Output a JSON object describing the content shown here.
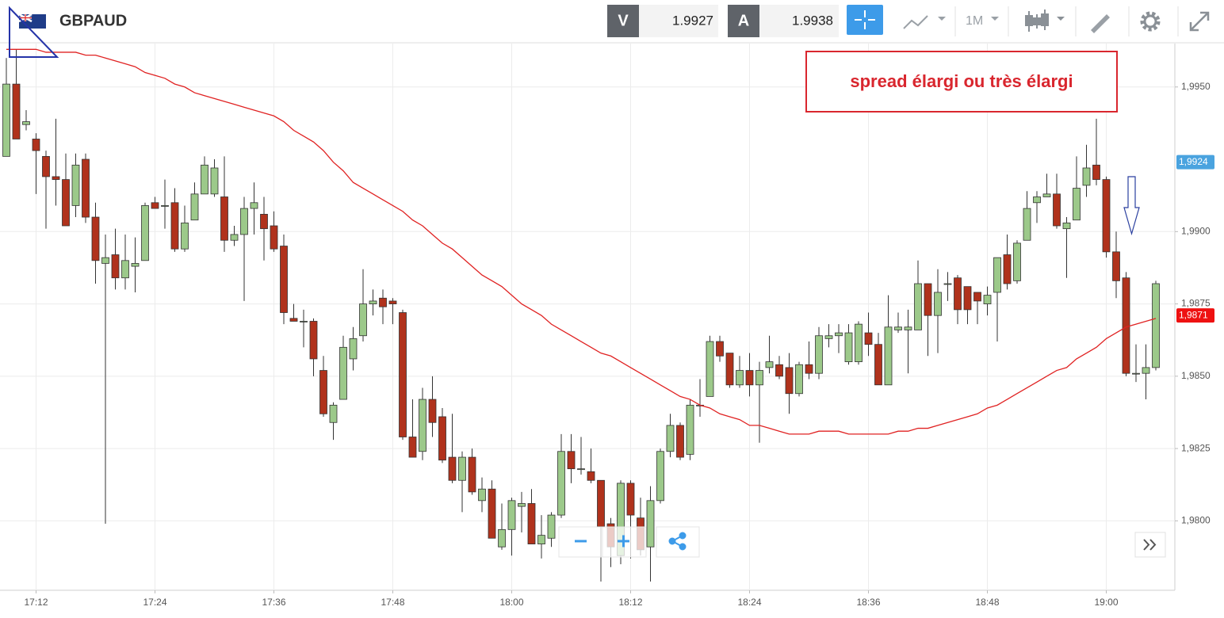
{
  "toolbar": {
    "symbol": "GBPAUD",
    "bid_label": "V",
    "bid": "1.9927",
    "ask_label": "A",
    "ask": "1.9938",
    "timeframe": "1M"
  },
  "chart_data": {
    "type": "candlestick",
    "annotation": "spread élargi ou très élargi",
    "categories": [
      null,
      null,
      null,
      "17:12",
      null,
      null,
      null,
      null,
      null,
      null,
      null,
      null,
      null,
      null,
      null,
      "17:24",
      null,
      null,
      null,
      null,
      null,
      null,
      null,
      null,
      null,
      null,
      null,
      "17:36",
      null,
      null,
      null,
      null,
      null,
      null,
      null,
      null,
      null,
      null,
      null,
      "17:48",
      null,
      null,
      null,
      null,
      null,
      null,
      null,
      null,
      null,
      null,
      null,
      "18:00",
      null,
      null,
      null,
      null,
      null,
      null,
      null,
      null,
      null,
      null,
      null,
      "18:12",
      null,
      null,
      null,
      null,
      null,
      null,
      null,
      null,
      null,
      null,
      null,
      "18:24",
      null,
      null,
      null,
      null,
      null,
      null,
      null,
      null,
      null,
      null,
      null,
      "18:36",
      null,
      null,
      null,
      null,
      null,
      null,
      null,
      null,
      null,
      null,
      null,
      "18:48",
      null,
      null,
      null,
      null,
      null,
      null,
      null,
      null,
      null,
      null,
      null,
      "19:00",
      null,
      null,
      null,
      null,
      null
    ],
    "open": [
      1.9926,
      1.9951,
      1.9937,
      1.9932,
      1.9926,
      1.9919,
      1.9918,
      1.9909,
      1.9925,
      1.9905,
      1.9889,
      1.9892,
      1.9884,
      1.9888,
      1.989,
      1.991,
      1.9909,
      1.991,
      1.9894,
      1.9904,
      1.9913,
      1.9913,
      1.9912,
      1.9897,
      1.9899,
      1.9908,
      1.9906,
      1.9902,
      1.9895,
      1.987,
      1.9869,
      1.9869,
      1.9852,
      1.9834,
      1.9842,
      1.9856,
      1.9864,
      1.9875,
      1.9877,
      1.9876,
      1.9872,
      1.9829,
      1.9824,
      1.9842,
      1.9836,
      1.9822,
      1.9814,
      1.9822,
      1.9807,
      1.9811,
      1.9791,
      1.9797,
      1.9805,
      1.9806,
      1.9792,
      1.9794,
      1.9802,
      1.9824,
      1.9818,
      1.9817,
      1.9814,
      1.9799,
      1.9788,
      1.9813,
      1.9801,
      1.9791,
      1.9807,
      1.9824,
      1.9833,
      1.9823,
      1.984,
      1.9843,
      1.9862,
      1.9858,
      1.9847,
      1.9852,
      1.9847,
      1.9853,
      1.9854,
      1.9853,
      1.9844,
      1.9854,
      1.9851,
      1.9863,
      1.9864,
      1.9855,
      1.9855,
      1.9865,
      1.9861,
      1.9847,
      1.9866,
      1.9866,
      1.9866,
      1.9882,
      1.9871,
      1.9882,
      1.9884,
      1.9881,
      1.9879,
      1.9875,
      1.9879,
      1.9892,
      1.9883,
      1.9897,
      1.991,
      1.9912,
      1.9913,
      1.9901,
      1.9904,
      1.9916,
      1.9923,
      1.9918,
      1.9893,
      1.9884,
      1.9851,
      1.9851,
      1.9853
    ],
    "high": [
      1.996,
      1.9963,
      1.9942,
      1.9934,
      1.9928,
      1.9939,
      1.9927,
      1.9927,
      1.9927,
      1.991,
      1.9899,
      1.9901,
      1.9899,
      1.9898,
      1.991,
      1.9912,
      1.9918,
      1.9915,
      1.9909,
      1.9917,
      1.9926,
      1.9925,
      1.9926,
      1.9902,
      1.9912,
      1.9917,
      1.9912,
      1.9907,
      1.9899,
      1.9875,
      1.9873,
      1.987,
      1.9857,
      1.9841,
      1.9864,
      1.9867,
      1.9887,
      1.988,
      1.988,
      1.9877,
      1.9873,
      1.9842,
      1.9846,
      1.985,
      1.9839,
      1.9837,
      1.9824,
      1.9825,
      1.9815,
      1.9814,
      1.9806,
      1.9808,
      1.981,
      1.9811,
      1.9802,
      1.9803,
      1.983,
      1.983,
      1.9829,
      1.9825,
      1.9814,
      1.9801,
      1.9814,
      1.9814,
      1.9808,
      1.9812,
      1.9825,
      1.9837,
      1.9834,
      1.9842,
      1.9849,
      1.9864,
      1.9864,
      1.9858,
      1.9857,
      1.9858,
      1.9855,
      1.9864,
      1.9857,
      1.9858,
      1.9855,
      1.9862,
      1.9867,
      1.9868,
      1.9868,
      1.9868,
      1.9869,
      1.9872,
      1.9865,
      1.9878,
      1.9872,
      1.9873,
      1.989,
      1.9882,
      1.9887,
      1.9886,
      1.9885,
      1.9881,
      1.9879,
      1.9881,
      1.9891,
      1.9899,
      1.9897,
      1.9914,
      1.9914,
      1.992,
      1.992,
      1.9905,
      1.9926,
      1.993,
      1.9939,
      1.9919,
      1.99,
      1.9886,
      1.9861,
      1.9861,
      1.9883
    ],
    "low": [
      1.9926,
      1.9932,
      1.9935,
      1.9913,
      1.9901,
      1.9909,
      1.9902,
      1.9905,
      1.9903,
      1.9882,
      1.9799,
      1.988,
      1.988,
      1.9879,
      1.989,
      1.9908,
      1.9901,
      1.9893,
      1.9893,
      1.9904,
      1.9913,
      1.9912,
      1.9893,
      1.9895,
      1.9876,
      1.9899,
      1.989,
      1.9893,
      1.9868,
      1.9869,
      1.986,
      1.985,
      1.9836,
      1.9828,
      1.9842,
      1.9852,
      1.9862,
      1.9871,
      1.9868,
      1.9868,
      1.9828,
      1.9822,
      1.9821,
      1.9829,
      1.982,
      1.9813,
      1.9803,
      1.9809,
      1.9803,
      1.9794,
      1.979,
      1.9788,
      1.9796,
      1.9792,
      1.9787,
      1.9791,
      1.9801,
      1.9813,
      1.9816,
      1.9813,
      1.9779,
      1.9784,
      1.9785,
      1.9787,
      1.9788,
      1.9779,
      1.9806,
      1.9822,
      1.9821,
      1.9821,
      1.9836,
      1.9843,
      1.9855,
      1.9846,
      1.9846,
      1.9843,
      1.9827,
      1.9851,
      1.9849,
      1.9837,
      1.9843,
      1.9849,
      1.9849,
      1.986,
      1.9858,
      1.9854,
      1.9854,
      1.9857,
      1.9847,
      1.9847,
      1.9865,
      1.9851,
      1.9866,
      1.9857,
      1.9858,
      1.9876,
      1.9868,
      1.9868,
      1.9868,
      1.9871,
      1.9862,
      1.988,
      1.9882,
      1.9897,
      1.9903,
      1.9912,
      1.9901,
      1.9884,
      1.9904,
      1.9912,
      1.9916,
      1.9891,
      1.9877,
      1.985,
      1.9848,
      1.9842,
      1.9852
    ],
    "close": [
      1.9951,
      1.9932,
      1.9938,
      1.9928,
      1.9919,
      1.9918,
      1.9902,
      1.9923,
      1.9905,
      1.989,
      1.9891,
      1.9884,
      1.989,
      1.9889,
      1.9909,
      1.9908,
      1.9909,
      1.9894,
      1.9903,
      1.9913,
      1.9923,
      1.9922,
      1.9897,
      1.9899,
      1.9908,
      1.991,
      1.9901,
      1.9894,
      1.9872,
      1.9869,
      1.9869,
      1.9856,
      1.9837,
      1.984,
      1.986,
      1.9863,
      1.9875,
      1.9876,
      1.9874,
      1.9875,
      1.9829,
      1.9822,
      1.9842,
      1.9834,
      1.9821,
      1.9814,
      1.9822,
      1.981,
      1.9811,
      1.9794,
      1.9797,
      1.9807,
      1.9806,
      1.9792,
      1.9795,
      1.9802,
      1.9824,
      1.9818,
      1.9818,
      1.9814,
      1.9798,
      1.9791,
      1.9813,
      1.9802,
      1.979,
      1.9807,
      1.9824,
      1.9833,
      1.9822,
      1.984,
      1.984,
      1.9862,
      1.9857,
      1.9847,
      1.9852,
      1.9847,
      1.9852,
      1.9855,
      1.985,
      1.9844,
      1.9854,
      1.9851,
      1.9864,
      1.9864,
      1.9865,
      1.9865,
      1.9868,
      1.9861,
      1.9847,
      1.9867,
      1.9867,
      1.9867,
      1.9882,
      1.9871,
      1.9879,
      1.9882,
      1.9873,
      1.9873,
      1.9876,
      1.9878,
      1.9891,
      1.9882,
      1.9896,
      1.9908,
      1.9912,
      1.9913,
      1.9902,
      1.9903,
      1.9915,
      1.9922,
      1.9918,
      1.9893,
      1.9883,
      1.9851,
      1.9851,
      1.9853,
      1.9882
    ],
    "up_color": "#9cc98a",
    "down_color": "#b0321c",
    "moving_average": {
      "color": "#e02222",
      "values": [
        1.9963,
        1.9963,
        1.9963,
        1.9963,
        1.9962,
        1.9962,
        1.9962,
        1.9962,
        1.9961,
        1.9961,
        1.996,
        1.9959,
        1.9958,
        1.9957,
        1.9955,
        1.9954,
        1.9953,
        1.9951,
        1.995,
        1.9948,
        1.9947,
        1.9946,
        1.9945,
        1.9944,
        1.9943,
        1.9942,
        1.9941,
        1.994,
        1.9938,
        1.9935,
        1.9933,
        1.9931,
        1.9928,
        1.9924,
        1.9921,
        1.9917,
        1.9915,
        1.9913,
        1.9911,
        1.9909,
        1.9907,
        1.9904,
        1.9902,
        1.9899,
        1.9896,
        1.9894,
        1.9891,
        1.9888,
        1.9885,
        1.9883,
        1.9881,
        1.9878,
        1.9875,
        1.9873,
        1.9871,
        1.9868,
        1.9866,
        1.9864,
        1.9862,
        1.986,
        1.9858,
        1.9857,
        1.9855,
        1.9853,
        1.9851,
        1.9849,
        1.9847,
        1.9845,
        1.9843,
        1.9842,
        1.984,
        1.9839,
        1.9837,
        1.9836,
        1.9835,
        1.9833,
        1.9833,
        1.9832,
        1.9831,
        1.983,
        1.983,
        1.983,
        1.9831,
        1.9831,
        1.9831,
        1.983,
        1.983,
        1.983,
        1.983,
        1.983,
        1.9831,
        1.9831,
        1.9832,
        1.9832,
        1.9833,
        1.9834,
        1.9835,
        1.9836,
        1.9837,
        1.9839,
        1.984,
        1.9842,
        1.9844,
        1.9846,
        1.9848,
        1.985,
        1.9852,
        1.9853,
        1.9856,
        1.9858,
        1.986,
        1.9863,
        1.9865,
        1.9867,
        1.9868,
        1.9869,
        1.987
      ]
    },
    "ylim": [
      1.9776,
      1.9965
    ],
    "yticks": [
      {
        "value": 1.98,
        "label": "1,9800"
      },
      {
        "value": 1.9825,
        "label": "1,9825"
      },
      {
        "value": 1.985,
        "label": "1,9850"
      },
      {
        "value": 1.9875,
        "label": "1,9875"
      },
      {
        "value": 1.99,
        "label": "1,9900"
      },
      {
        "value": 1.995,
        "label": "1,9950"
      }
    ],
    "price_labels": [
      {
        "value": 1.9924,
        "label": "1,9924",
        "color": "#4aa3df"
      },
      {
        "value": 1.9871,
        "label": "1,9871",
        "color": "#ee1111"
      }
    ],
    "grid": true
  }
}
